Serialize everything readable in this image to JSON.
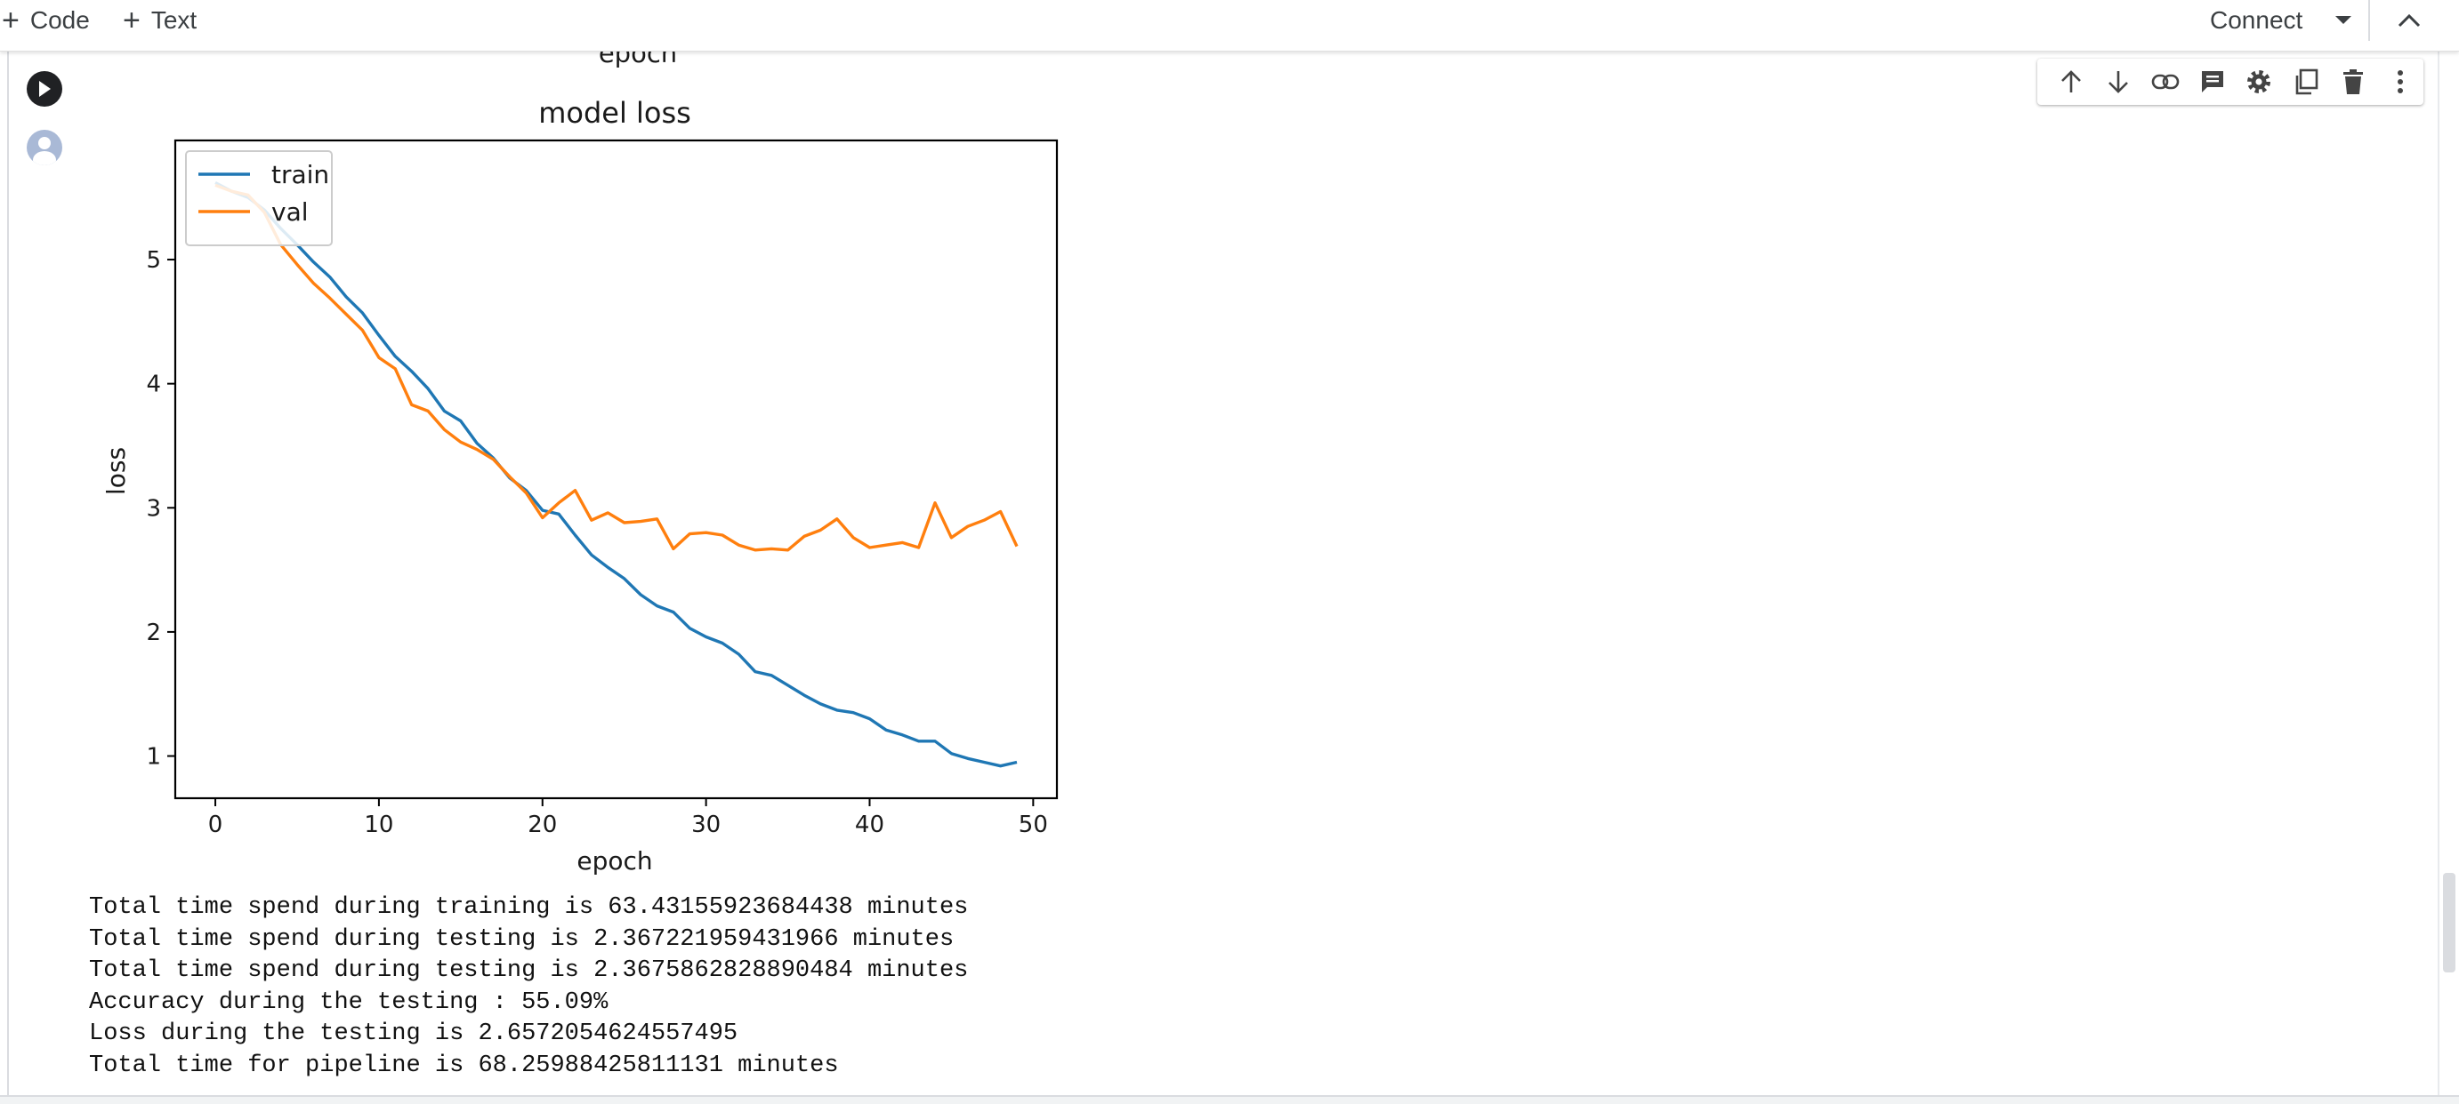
{
  "toolbar": {
    "add_code_label": "Code",
    "add_text_label": "Text",
    "connect_label": "Connect",
    "icons": [
      "plus-icon",
      "dropdown-arrow-icon",
      "chevron-up-icon"
    ]
  },
  "cell_toolbar": {
    "icons": [
      "arrow-up-icon",
      "arrow-down-icon",
      "link-icon",
      "comment-icon",
      "gear-icon",
      "mirror-cell-icon",
      "trash-icon",
      "more-vert-icon"
    ]
  },
  "gutter": {
    "icons": [
      "run-icon",
      "avatar-icon"
    ]
  },
  "prev_output": {
    "xlabel_fragment": "epoch"
  },
  "chart_data": {
    "type": "line",
    "title": "model loss",
    "xlabel": "epoch",
    "ylabel": "loss",
    "xlim": [
      -2.45,
      51.45
    ],
    "ylim": [
      0.66,
      5.96
    ],
    "xticks": [
      0,
      10,
      20,
      30,
      40,
      50
    ],
    "yticks": [
      1,
      2,
      3,
      4,
      5
    ],
    "grid": false,
    "legend_position": "upper-left",
    "x": [
      0,
      1,
      2,
      3,
      4,
      5,
      6,
      7,
      8,
      9,
      10,
      11,
      12,
      13,
      14,
      15,
      16,
      17,
      18,
      19,
      20,
      21,
      22,
      23,
      24,
      25,
      26,
      27,
      28,
      29,
      30,
      31,
      32,
      33,
      34,
      35,
      36,
      37,
      38,
      39,
      40,
      41,
      42,
      43,
      44,
      45,
      46,
      47,
      48,
      49
    ],
    "series": [
      {
        "name": "train",
        "color": "#1f77b4",
        "values": [
          5.62,
          5.55,
          5.5,
          5.4,
          5.25,
          5.12,
          4.98,
          4.86,
          4.7,
          4.57,
          4.39,
          4.22,
          4.1,
          3.96,
          3.78,
          3.7,
          3.52,
          3.4,
          3.24,
          3.14,
          2.98,
          2.95,
          2.78,
          2.62,
          2.52,
          2.43,
          2.3,
          2.21,
          2.16,
          2.03,
          1.96,
          1.91,
          1.82,
          1.68,
          1.65,
          1.57,
          1.49,
          1.42,
          1.37,
          1.35,
          1.3,
          1.21,
          1.17,
          1.12,
          1.12,
          1.02,
          0.98,
          0.95,
          0.92,
          0.95
        ]
      },
      {
        "name": "val",
        "color": "#ff7f0e",
        "values": [
          5.6,
          5.55,
          5.52,
          5.38,
          5.12,
          4.96,
          4.81,
          4.69,
          4.56,
          4.43,
          4.21,
          4.12,
          3.83,
          3.78,
          3.63,
          3.53,
          3.47,
          3.39,
          3.25,
          3.12,
          2.92,
          3.04,
          3.14,
          2.9,
          2.96,
          2.88,
          2.89,
          2.91,
          2.67,
          2.79,
          2.8,
          2.78,
          2.7,
          2.66,
          2.67,
          2.66,
          2.77,
          2.82,
          2.91,
          2.76,
          2.68,
          2.7,
          2.72,
          2.68,
          3.04,
          2.76,
          2.85,
          2.9,
          2.97,
          2.69
        ]
      }
    ]
  },
  "output_lines": [
    "Total time spend during training is 63.43155923684438 minutes",
    "Total time spend during testing is 2.367221959431966 minutes",
    "Total time spend during testing is 2.3675862828890484 minutes",
    "Accuracy during the testing : 55.09%",
    "Loss during the testing is 2.6572054624557495",
    "Total time for pipeline is 68.25988425811131 minutes"
  ]
}
